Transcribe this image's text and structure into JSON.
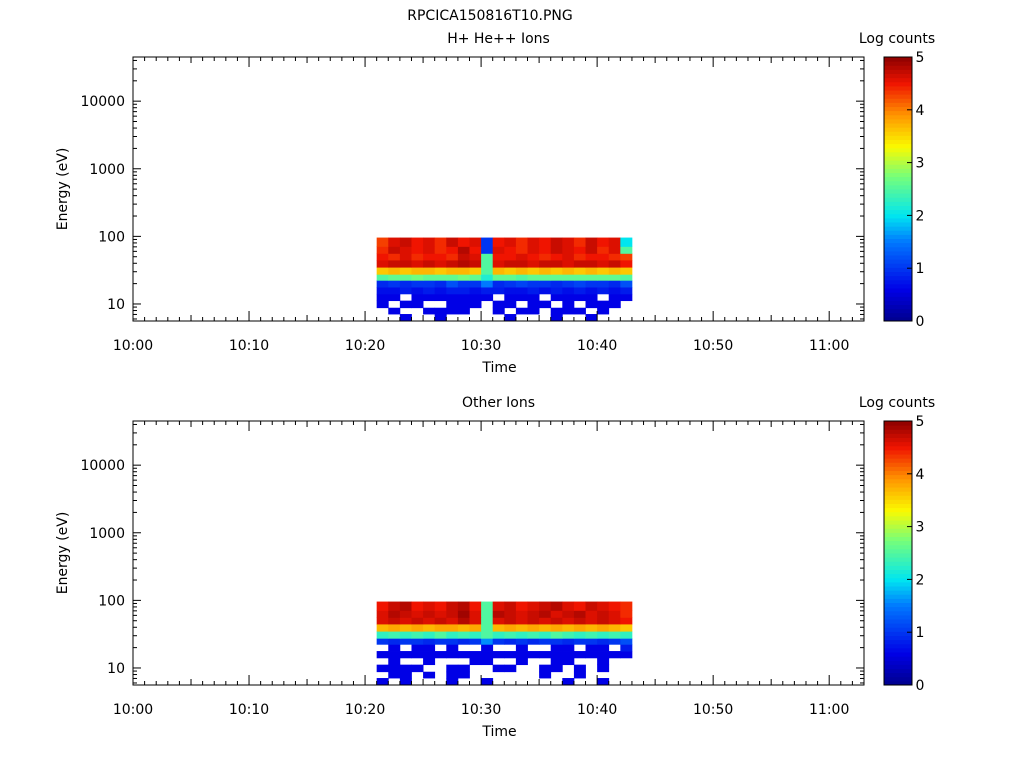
{
  "figure_title": "RPCICA150816T10.PNG",
  "chart_data": [
    {
      "type": "heatmap",
      "title": "H+ He++ Ions",
      "xlabel": "Time",
      "ylabel": "Energy (eV)",
      "colorbar_label": "Log counts",
      "x_ticks": [
        "10:00",
        "10:10",
        "10:20",
        "10:30",
        "10:40",
        "10:50",
        "11:00"
      ],
      "x_range": [
        "10:00",
        "11:03"
      ],
      "y_scale": "log",
      "y_range": [
        5.6,
        45000
      ],
      "y_ticks": [
        10,
        100,
        1000,
        10000
      ],
      "y_tick_labels": [
        "10",
        "100",
        "1000",
        "10000"
      ],
      "colorbar_range": [
        0,
        5
      ],
      "colorbar_ticks": [
        "0",
        "1",
        "2",
        "3",
        "4",
        "5"
      ],
      "colormap": "rainbow (blue-cyan-green-yellow-red)",
      "data_time_range": [
        "10:21",
        "10:43"
      ],
      "time_bins": 22,
      "energy_bin_edges": [
        5.6,
        7.1,
        8.8,
        11.2,
        14.1,
        17.8,
        22.4,
        27.5,
        35,
        44.7,
        56,
        71,
        96
      ],
      "values": [
        [
          null,
          null,
          0.6,
          null,
          null,
          0.6,
          null,
          null,
          null,
          null,
          null,
          0.6,
          null,
          null,
          null,
          0.6,
          null,
          null,
          0.6,
          null,
          null,
          null
        ],
        [
          null,
          0.6,
          null,
          null,
          0.6,
          0.6,
          0.6,
          0.6,
          null,
          null,
          0.6,
          null,
          0.6,
          0.6,
          null,
          0.6,
          0.6,
          0.6,
          null,
          0.6,
          null,
          null
        ],
        [
          0.6,
          null,
          0.6,
          0.6,
          null,
          null,
          0.6,
          0.6,
          0.6,
          null,
          0.6,
          0.6,
          null,
          0.6,
          0.6,
          null,
          0.6,
          null,
          0.6,
          0.6,
          0.6,
          null
        ],
        [
          0.6,
          0.6,
          null,
          0.6,
          0.6,
          0.6,
          0.6,
          0.6,
          0.6,
          0.6,
          null,
          0.6,
          0.6,
          0.6,
          null,
          0.6,
          0.6,
          0.6,
          0.6,
          null,
          0.6,
          0.6
        ],
        [
          0.7,
          0.7,
          0.8,
          0.7,
          0.8,
          0.7,
          0.8,
          0.8,
          0.7,
          0.8,
          0.8,
          0.7,
          0.7,
          0.8,
          0.7,
          0.8,
          0.7,
          0.8,
          0.7,
          0.8,
          0.7,
          0.8
        ],
        [
          0.9,
          1.0,
          0.9,
          1.0,
          1.0,
          0.9,
          1.2,
          1.0,
          1.0,
          1.5,
          0.9,
          1.0,
          1.1,
          1.0,
          1.0,
          0.9,
          1.0,
          1.1,
          1.0,
          1.0,
          0.9,
          1.2
        ],
        [
          2.5,
          2.6,
          2.6,
          2.7,
          2.6,
          2.6,
          2.6,
          2.7,
          2.6,
          2.2,
          2.6,
          2.6,
          2.5,
          2.6,
          2.6,
          2.6,
          2.6,
          2.6,
          2.6,
          2.6,
          2.6,
          2.5
        ],
        [
          3.6,
          3.7,
          3.6,
          3.7,
          3.7,
          3.6,
          3.7,
          3.7,
          3.6,
          2.5,
          3.7,
          3.6,
          3.7,
          3.6,
          3.7,
          3.6,
          3.7,
          3.6,
          3.7,
          3.6,
          3.7,
          3.6
        ],
        [
          4.6,
          4.7,
          4.7,
          4.6,
          4.7,
          4.6,
          4.7,
          4.8,
          4.7,
          2.5,
          4.6,
          4.7,
          4.7,
          4.6,
          4.7,
          4.7,
          4.6,
          4.7,
          4.7,
          4.6,
          4.7,
          4.5
        ],
        [
          4.5,
          4.4,
          4.6,
          4.4,
          4.5,
          4.5,
          4.4,
          4.7,
          4.6,
          2.5,
          4.5,
          4.5,
          4.6,
          4.5,
          4.4,
          4.5,
          4.6,
          4.4,
          4.5,
          4.5,
          4.4,
          4.3
        ],
        [
          4.4,
          4.7,
          4.6,
          4.5,
          4.6,
          4.4,
          4.5,
          4.8,
          4.5,
          1.0,
          4.6,
          4.5,
          4.4,
          4.6,
          4.5,
          4.7,
          4.6,
          4.5,
          4.7,
          4.4,
          4.6,
          2.5
        ],
        [
          4.3,
          4.6,
          4.7,
          4.5,
          4.6,
          4.4,
          4.7,
          4.5,
          4.6,
          1.0,
          4.5,
          4.6,
          4.4,
          4.6,
          4.5,
          4.7,
          4.6,
          4.4,
          4.7,
          4.5,
          4.6,
          2.0
        ]
      ]
    },
    {
      "type": "heatmap",
      "title": "Other Ions",
      "xlabel": "Time",
      "ylabel": "Energy (eV)",
      "colorbar_label": "Log counts",
      "x_ticks": [
        "10:00",
        "10:10",
        "10:20",
        "10:30",
        "10:40",
        "10:50",
        "11:00"
      ],
      "x_range": [
        "10:00",
        "11:03"
      ],
      "y_scale": "log",
      "y_range": [
        5.6,
        45000
      ],
      "y_ticks": [
        10,
        100,
        1000,
        10000
      ],
      "y_tick_labels": [
        "10",
        "100",
        "1000",
        "10000"
      ],
      "colorbar_range": [
        0,
        5
      ],
      "colorbar_ticks": [
        "0",
        "1",
        "2",
        "3",
        "4",
        "5"
      ],
      "colormap": "rainbow (blue-cyan-green-yellow-red)",
      "data_time_range": [
        "10:21",
        "10:43"
      ],
      "time_bins": 22,
      "energy_bin_edges": [
        5.6,
        7.1,
        8.8,
        11.2,
        14.1,
        17.8,
        22.4,
        27.5,
        35,
        44.7,
        56,
        71,
        96
      ],
      "values": [
        [
          0.6,
          null,
          0.6,
          null,
          null,
          null,
          0.6,
          null,
          null,
          0.6,
          null,
          null,
          null,
          null,
          null,
          null,
          0.6,
          null,
          null,
          0.6,
          null,
          null
        ],
        [
          null,
          0.6,
          0.6,
          null,
          0.6,
          null,
          0.6,
          0.6,
          null,
          null,
          null,
          null,
          null,
          null,
          0.6,
          null,
          null,
          0.6,
          null,
          null,
          null,
          null
        ],
        [
          0.6,
          0.6,
          0.6,
          0.6,
          null,
          null,
          0.6,
          0.6,
          null,
          null,
          0.6,
          0.6,
          null,
          null,
          0.6,
          0.6,
          null,
          0.6,
          null,
          0.6,
          null,
          null
        ],
        [
          null,
          0.6,
          null,
          null,
          0.6,
          null,
          null,
          null,
          0.6,
          0.6,
          null,
          null,
          0.6,
          null,
          null,
          0.6,
          0.6,
          null,
          null,
          0.6,
          null,
          null
        ],
        [
          0.6,
          0.6,
          0.6,
          0.6,
          0.6,
          0.6,
          0.6,
          0.6,
          0.6,
          0.6,
          0.6,
          0.6,
          0.6,
          0.6,
          0.6,
          0.6,
          0.6,
          0.6,
          0.6,
          0.6,
          0.6,
          0.6
        ],
        [
          null,
          0.6,
          null,
          0.6,
          0.6,
          null,
          0.6,
          null,
          null,
          0.6,
          null,
          null,
          0.6,
          null,
          null,
          0.6,
          0.6,
          null,
          0.6,
          0.6,
          null,
          0.8
        ],
        [
          1.0,
          0.9,
          1.0,
          1.0,
          0.9,
          1.0,
          1.0,
          0.9,
          1.0,
          1.6,
          1.0,
          0.9,
          1.0,
          0.9,
          1.0,
          1.0,
          0.9,
          1.0,
          1.0,
          0.9,
          1.0,
          1.2
        ],
        [
          2.3,
          2.4,
          2.3,
          2.4,
          2.3,
          2.5,
          2.3,
          2.4,
          2.3,
          2.5,
          2.3,
          2.4,
          2.3,
          2.4,
          2.3,
          2.5,
          2.4,
          2.3,
          2.4,
          2.3,
          2.4,
          2.3
        ],
        [
          3.7,
          3.8,
          3.7,
          3.8,
          3.7,
          3.8,
          3.8,
          3.7,
          3.8,
          2.5,
          3.7,
          3.8,
          3.7,
          3.8,
          3.7,
          3.8,
          3.7,
          3.8,
          3.7,
          3.8,
          3.7,
          3.6
        ],
        [
          4.6,
          4.7,
          4.6,
          4.7,
          4.6,
          4.7,
          4.6,
          4.8,
          4.6,
          2.5,
          4.6,
          4.7,
          4.6,
          4.7,
          4.6,
          4.7,
          4.6,
          4.7,
          4.6,
          4.7,
          4.6,
          4.5
        ],
        [
          4.6,
          4.8,
          4.7,
          4.6,
          4.7,
          4.6,
          4.7,
          4.9,
          4.6,
          2.5,
          4.8,
          4.7,
          4.6,
          4.7,
          4.8,
          4.6,
          4.7,
          4.8,
          4.6,
          4.7,
          4.6,
          4.4
        ],
        [
          4.5,
          4.7,
          4.8,
          4.5,
          4.6,
          4.5,
          4.7,
          4.8,
          4.5,
          2.5,
          4.6,
          4.7,
          4.5,
          4.6,
          4.7,
          4.8,
          4.6,
          4.5,
          4.7,
          4.6,
          4.5,
          4.4
        ]
      ]
    }
  ]
}
